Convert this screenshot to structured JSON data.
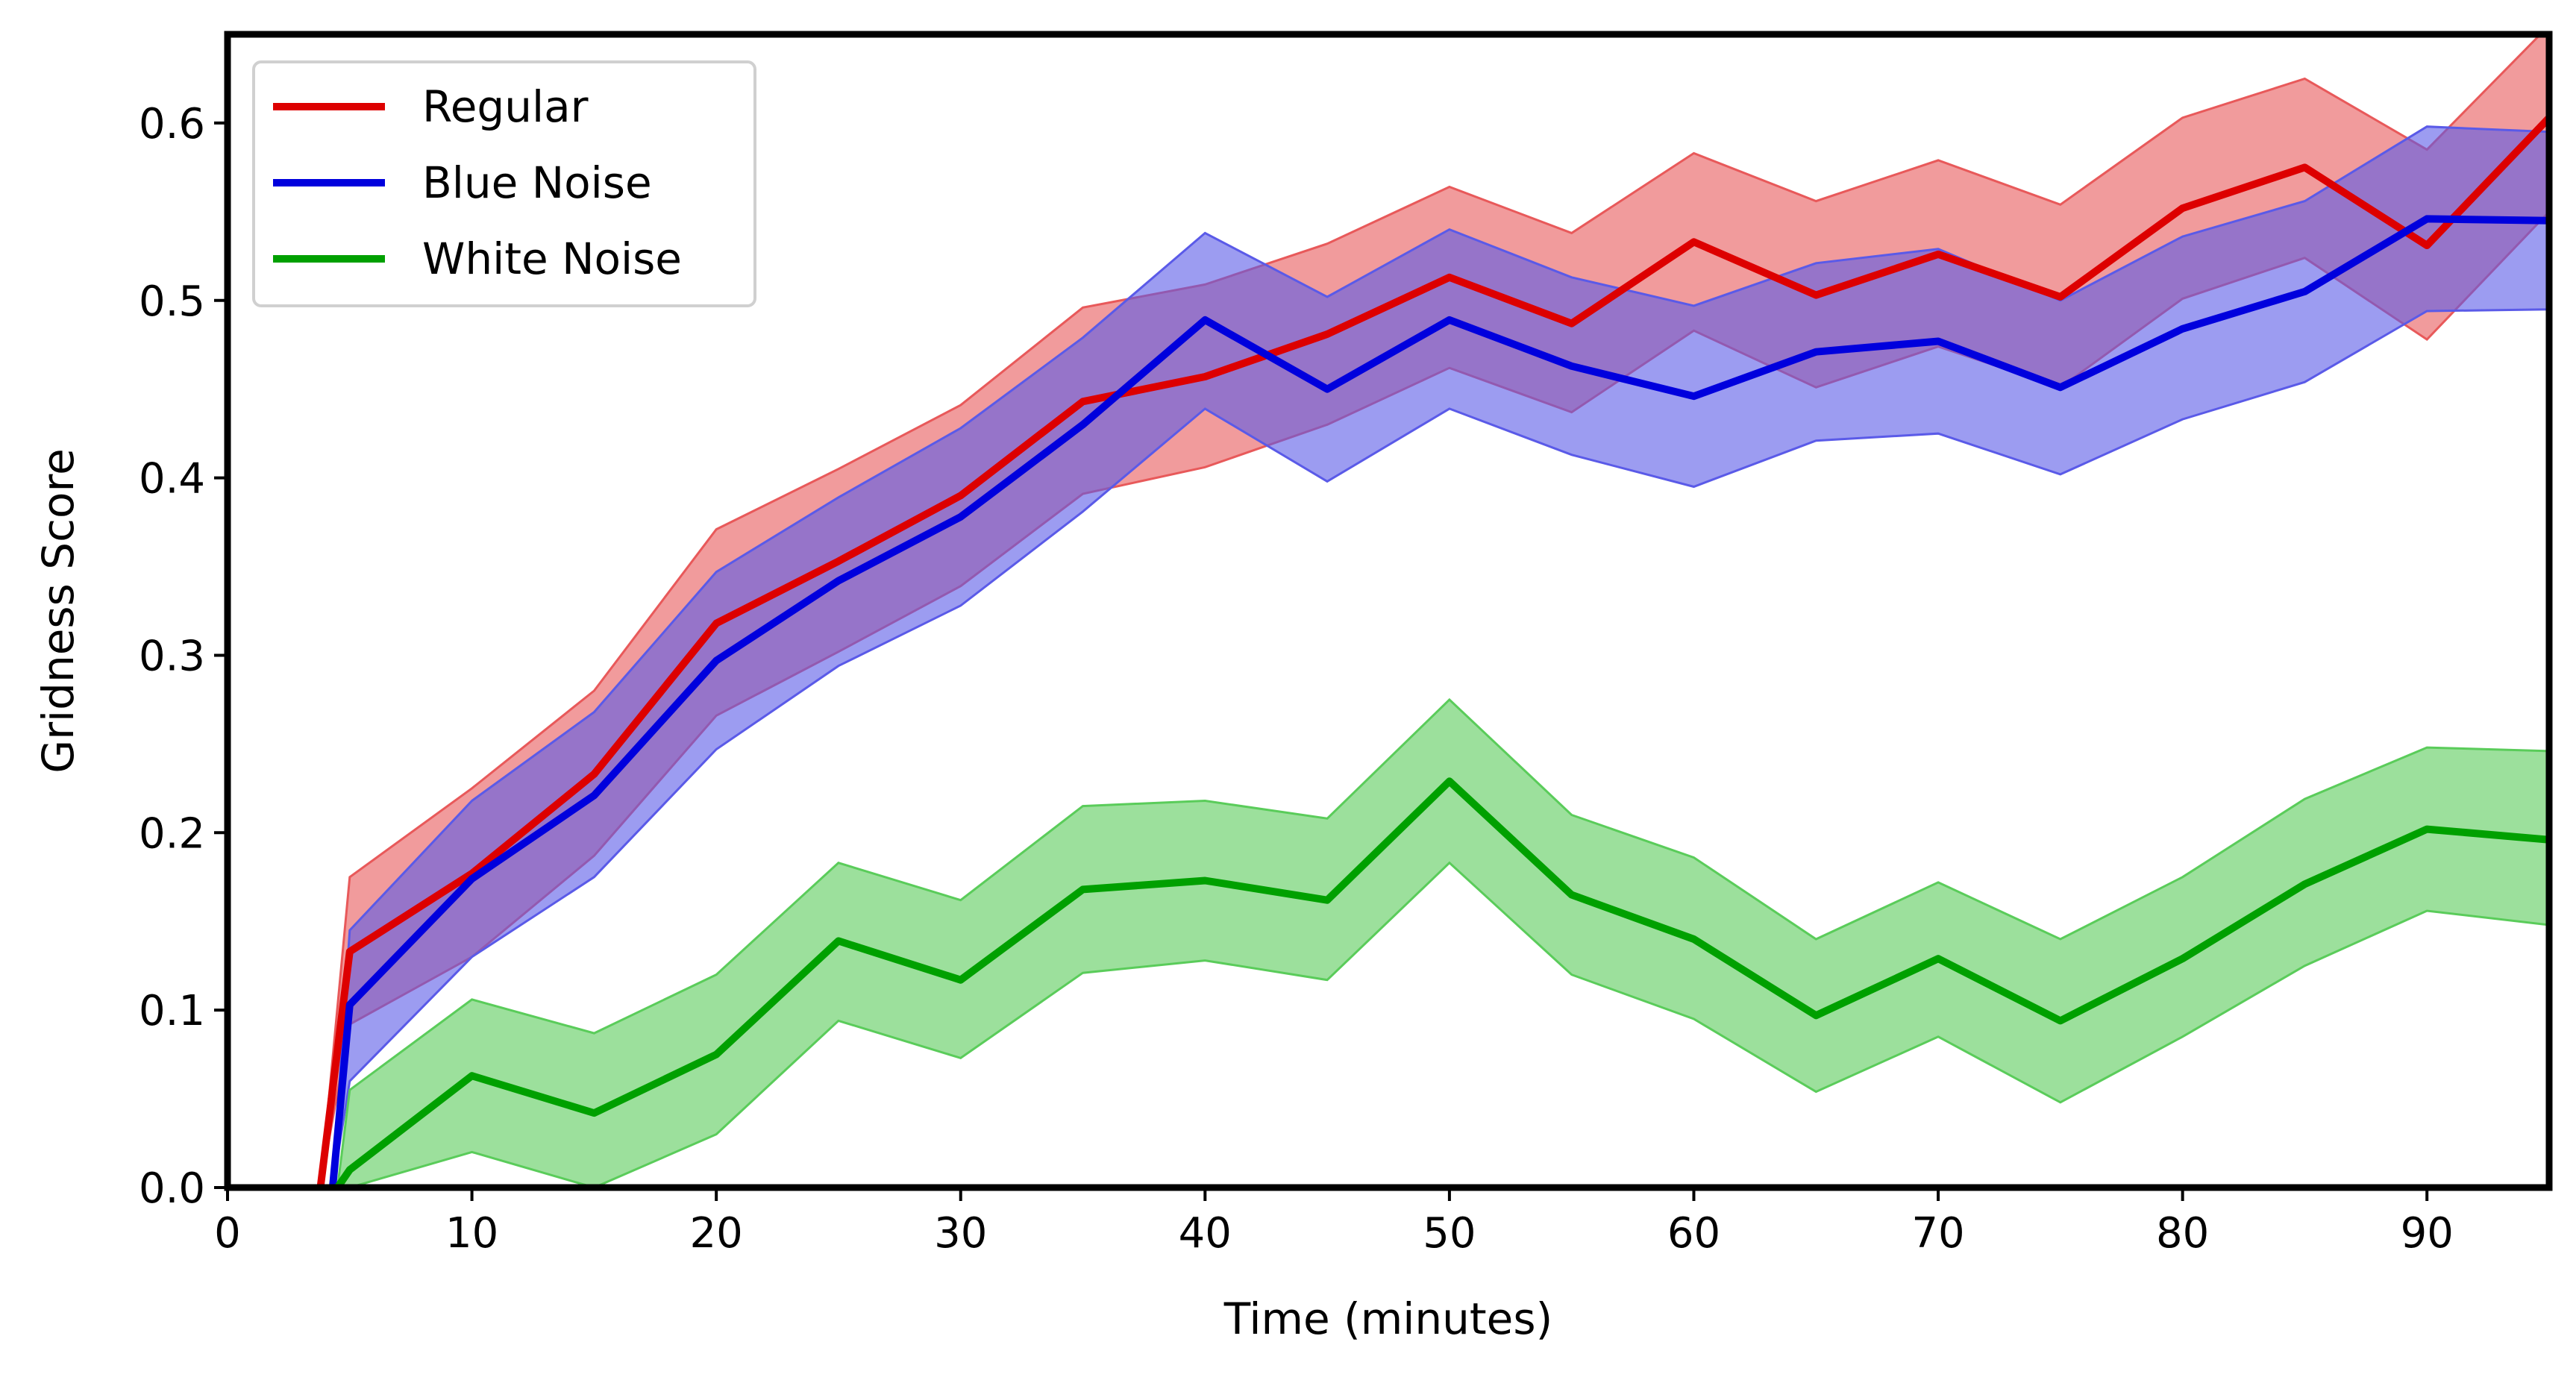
{
  "chart_data": {
    "type": "line",
    "title": "",
    "xlabel": "Time (minutes)",
    "ylabel": "Gridness Score",
    "xlim": [
      0,
      95
    ],
    "ylim": [
      0,
      0.65
    ],
    "xticks": [
      "0",
      "10",
      "20",
      "30",
      "40",
      "50",
      "60",
      "70",
      "80",
      "90"
    ],
    "yticks": [
      "0.0",
      "0.1",
      "0.2",
      "0.3",
      "0.4",
      "0.5",
      "0.6"
    ],
    "grid": false,
    "legend_position": "upper-left",
    "series": [
      {
        "name": "Regular",
        "color": "#dd0000",
        "band_color": "#e8595a",
        "x": [
          3.8,
          5,
          10,
          15,
          20,
          25,
          30,
          35,
          40,
          45,
          50,
          55,
          60,
          65,
          70,
          75,
          80,
          85,
          90,
          95
        ],
        "y": [
          0.0,
          0.133,
          0.177,
          0.233,
          0.318,
          0.353,
          0.39,
          0.443,
          0.457,
          0.481,
          0.513,
          0.487,
          0.533,
          0.503,
          0.526,
          0.502,
          0.552,
          0.575,
          0.531,
          0.603
        ],
        "upper": [
          0.0,
          0.175,
          0.225,
          0.28,
          0.371,
          0.405,
          0.441,
          0.496,
          0.509,
          0.532,
          0.564,
          0.538,
          0.583,
          0.556,
          0.579,
          0.554,
          0.603,
          0.625,
          0.585,
          0.655
        ],
        "lower": [
          0.0,
          0.092,
          0.13,
          0.187,
          0.266,
          0.302,
          0.339,
          0.391,
          0.406,
          0.43,
          0.462,
          0.437,
          0.483,
          0.451,
          0.474,
          0.451,
          0.501,
          0.524,
          0.478,
          0.55
        ]
      },
      {
        "name": "Blue Noise",
        "color": "#0000dd",
        "band_color": "#5a5ae8",
        "x": [
          4.3,
          5,
          10,
          15,
          20,
          25,
          30,
          35,
          40,
          45,
          50,
          55,
          60,
          65,
          70,
          75,
          80,
          85,
          90,
          95
        ],
        "y": [
          0.0,
          0.103,
          0.174,
          0.221,
          0.297,
          0.342,
          0.378,
          0.43,
          0.489,
          0.45,
          0.489,
          0.463,
          0.446,
          0.471,
          0.477,
          0.451,
          0.484,
          0.505,
          0.546,
          0.545
        ],
        "upper": [
          0.0,
          0.145,
          0.218,
          0.268,
          0.347,
          0.389,
          0.428,
          0.479,
          0.538,
          0.502,
          0.54,
          0.513,
          0.497,
          0.521,
          0.529,
          0.5,
          0.536,
          0.556,
          0.598,
          0.595
        ],
        "lower": [
          0.0,
          0.06,
          0.13,
          0.175,
          0.247,
          0.294,
          0.328,
          0.381,
          0.439,
          0.398,
          0.439,
          0.413,
          0.395,
          0.421,
          0.425,
          0.402,
          0.433,
          0.454,
          0.494,
          0.495
        ]
      },
      {
        "name": "White Noise",
        "color": "#00a000",
        "band_color": "#5acc5a",
        "x": [
          4.5,
          5,
          10,
          15,
          20,
          25,
          30,
          35,
          40,
          45,
          50,
          55,
          60,
          65,
          70,
          75,
          80,
          85,
          90,
          95
        ],
        "y": [
          0.0,
          0.01,
          0.063,
          0.042,
          0.075,
          0.139,
          0.117,
          0.168,
          0.173,
          0.162,
          0.229,
          0.165,
          0.14,
          0.097,
          0.129,
          0.094,
          0.129,
          0.171,
          0.202,
          0.196
        ],
        "upper": [
          0.0,
          0.055,
          0.106,
          0.087,
          0.12,
          0.183,
          0.162,
          0.215,
          0.218,
          0.208,
          0.275,
          0.21,
          0.186,
          0.14,
          0.172,
          0.14,
          0.175,
          0.219,
          0.248,
          0.246
        ],
        "lower": [
          0.0,
          0.0,
          0.02,
          0.0,
          0.03,
          0.094,
          0.073,
          0.121,
          0.128,
          0.117,
          0.183,
          0.12,
          0.095,
          0.054,
          0.085,
          0.048,
          0.085,
          0.125,
          0.156,
          0.148
        ]
      }
    ]
  }
}
